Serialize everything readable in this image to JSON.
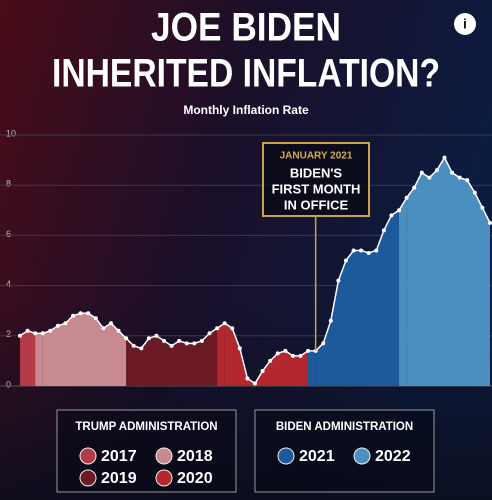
{
  "info_icon": "i",
  "chart_data": {
    "type": "area",
    "title": [
      "JOE BIDEN",
      "INHERITED INFLATION?"
    ],
    "subtitle": "Monthly Inflation Rate",
    "ylim": [
      0,
      10
    ],
    "yticks": [
      0,
      2,
      4,
      6,
      8,
      10
    ],
    "grid": true,
    "series": [
      {
        "name": "2017",
        "color": "#b53a48",
        "values": [
          2.0,
          2.2,
          2.1
        ]
      },
      {
        "name": "2018",
        "color": "#c68a90",
        "values": [
          2.1,
          2.2,
          2.4,
          2.5,
          2.8,
          2.9,
          2.9,
          2.7,
          2.3,
          2.5,
          2.2,
          1.9
        ]
      },
      {
        "name": "2019",
        "color": "#6b1a26",
        "values": [
          1.6,
          1.5,
          1.9,
          2.0,
          1.8,
          1.6,
          1.8,
          1.7,
          1.7,
          1.8,
          2.1,
          2.3
        ]
      },
      {
        "name": "2020",
        "color": "#b3272f",
        "values": [
          2.5,
          2.3,
          1.5,
          0.3,
          0.1,
          0.6,
          1.0,
          1.3,
          1.4,
          1.2,
          1.2,
          1.4
        ]
      },
      {
        "name": "2021",
        "color": "#1d5a9c",
        "values": [
          1.4,
          1.7,
          2.6,
          4.2,
          5.0,
          5.4,
          5.4,
          5.3,
          5.4,
          6.2,
          6.8,
          7.0
        ]
      },
      {
        "name": "2022",
        "color": "#4a8fc0",
        "values": [
          7.5,
          7.9,
          8.5,
          8.3,
          8.6,
          9.1,
          8.5,
          8.3,
          8.2,
          7.7,
          7.1,
          6.5
        ]
      }
    ],
    "annotation": {
      "label": "JANUARY 2021",
      "text": [
        "BIDEN'S",
        "FIRST MONTH",
        "IN OFFICE"
      ]
    },
    "legend_groups": [
      {
        "title": "TRUMP ADMINISTRATION",
        "series": [
          "2017",
          "2018",
          "2019",
          "2020"
        ]
      },
      {
        "title": "BIDEN ADMINISTRATION",
        "series": [
          "2021",
          "2022"
        ]
      }
    ]
  }
}
